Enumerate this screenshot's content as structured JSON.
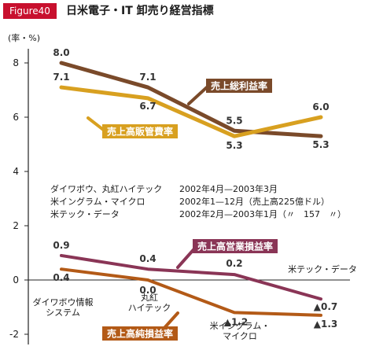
{
  "figure": {
    "badge": "Figure40",
    "title": "日米電子・IT 卸売り経営指標"
  },
  "colors": {
    "badge": "#c8102e",
    "gross_margin": "#7a4a2a",
    "sga": "#d8a020",
    "operating": "#8a3556",
    "net": "#b35a17",
    "axis": "#222222",
    "text": "#1a1a1a"
  },
  "chart_data": {
    "type": "line",
    "ylabel": "(率・%)",
    "ylim": [
      -2.4,
      8.6
    ],
    "yticks": [
      -2,
      0,
      2,
      4,
      6,
      8
    ],
    "categories": [
      "ダイワボウ情報\nシステム",
      "丸紅\nハイテック",
      "米イングラム・\nマイクロ",
      "米テック・データ"
    ],
    "series": [
      {
        "name": "売上総利益率",
        "values": [
          8.0,
          7.1,
          5.5,
          5.3
        ],
        "labels": [
          "8.0",
          "7.1",
          "5.5",
          "5.3"
        ]
      },
      {
        "name": "売上高販管費率",
        "values": [
          7.1,
          6.7,
          5.3,
          6.0
        ],
        "labels": [
          "7.1",
          "6.7",
          "5.3",
          "6.0"
        ]
      },
      {
        "name": "売上高営業損益率",
        "values": [
          0.9,
          0.4,
          0.2,
          -0.7
        ],
        "labels": [
          "0.9",
          "0.4",
          "0.2",
          "▲0.7"
        ]
      },
      {
        "name": "売上高純損益率",
        "values": [
          0.4,
          0.0,
          -1.2,
          -1.3
        ],
        "labels": [
          "0.4",
          "0.0",
          "▲1.2",
          "▲1.3"
        ]
      }
    ],
    "notes": [
      {
        "company": "ダイワボウ、丸紅ハイテック",
        "period": "2002年4月—2003年3月"
      },
      {
        "company": "米イングラム・マイクロ",
        "period": "2002年1—12月（売上高225億ドル）"
      },
      {
        "company": "米テック・データ",
        "period": "2002年2月—2003年1月（〃　157　〃）"
      }
    ]
  }
}
